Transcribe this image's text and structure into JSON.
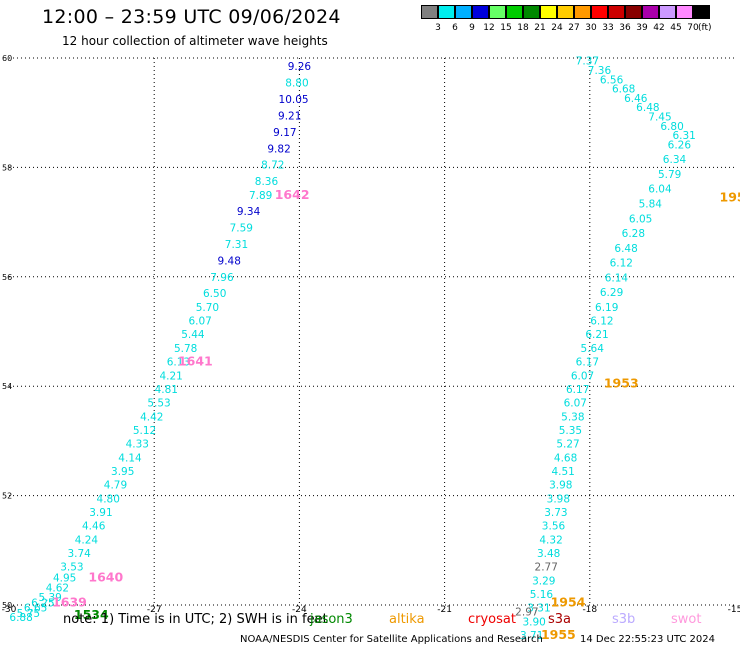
{
  "header": {
    "title": "12:00 – 23:59 UTC 09/06/2024",
    "subtitle": "12 hour collection of altimeter wave heights"
  },
  "colorbar": {
    "unit": "(ft)",
    "bins": [
      {
        "label": "3",
        "color": "#808080"
      },
      {
        "label": "6",
        "color": "#00eeee"
      },
      {
        "label": "9",
        "color": "#00b0ff"
      },
      {
        "label": "12",
        "color": "#0000dd"
      },
      {
        "label": "15",
        "color": "#66ff66"
      },
      {
        "label": "18",
        "color": "#00cc00"
      },
      {
        "label": "21",
        "color": "#008800"
      },
      {
        "label": "24",
        "color": "#ffff00"
      },
      {
        "label": "27",
        "color": "#ffcc00"
      },
      {
        "label": "30",
        "color": "#ff9900"
      },
      {
        "label": "33",
        "color": "#ff0000"
      },
      {
        "label": "36",
        "color": "#cc0000"
      },
      {
        "label": "39",
        "color": "#880000"
      },
      {
        "label": "42",
        "color": "#aa00aa"
      },
      {
        "label": "45",
        "color": "#cc99ff"
      },
      {
        "label": "70",
        "color": "#ff88ff"
      },
      {
        "label": "",
        "color": "#000000"
      }
    ]
  },
  "map": {
    "lon_range": [
      -30,
      -15
    ],
    "lat_range": [
      50,
      60
    ],
    "lon_ticks": [
      "-30",
      "-27",
      "-24",
      "-21",
      "-18",
      "-15"
    ],
    "lat_ticks": [
      "50",
      "52",
      "54",
      "56",
      "58",
      "60"
    ],
    "grid": true
  },
  "colors": {
    "cyan": "#00dddd",
    "blue": "#0000cc",
    "pink": "#ff77cc",
    "orange": "#ee9900",
    "green": "#008800",
    "gray": "#666666"
  },
  "chart_data": {
    "type": "scatter",
    "title": "12:00 – 23:59 UTC 09/06/2024",
    "subtitle": "12 hour collection of altimeter wave heights",
    "xlim": [
      -30,
      -15
    ],
    "ylim": [
      50,
      60
    ],
    "values": [
      {
        "lon": -24.0,
        "lat": 59.85,
        "v": "9.26",
        "c": "blue"
      },
      {
        "lon": -24.05,
        "lat": 59.55,
        "v": "8.80",
        "c": "cyan"
      },
      {
        "lon": -24.12,
        "lat": 59.25,
        "v": "10.05",
        "c": "blue"
      },
      {
        "lon": -24.2,
        "lat": 58.95,
        "v": "9.21",
        "c": "blue"
      },
      {
        "lon": -24.3,
        "lat": 58.65,
        "v": "9.17",
        "c": "blue"
      },
      {
        "lon": -24.42,
        "lat": 58.35,
        "v": "9.82",
        "c": "blue"
      },
      {
        "lon": -24.55,
        "lat": 58.05,
        "v": "8.72",
        "c": "cyan"
      },
      {
        "lon": -24.68,
        "lat": 57.75,
        "v": "8.36",
        "c": "cyan"
      },
      {
        "lon": -24.8,
        "lat": 57.5,
        "v": "7.89",
        "c": "cyan"
      },
      {
        "lon": -25.05,
        "lat": 57.2,
        "v": "9.34",
        "c": "blue"
      },
      {
        "lon": -25.2,
        "lat": 56.9,
        "v": "7.59",
        "c": "cyan"
      },
      {
        "lon": -25.3,
        "lat": 56.6,
        "v": "7.31",
        "c": "cyan"
      },
      {
        "lon": -25.45,
        "lat": 56.3,
        "v": "9.48",
        "c": "blue"
      },
      {
        "lon": -25.6,
        "lat": 56.0,
        "v": "7.96",
        "c": "cyan"
      },
      {
        "lon": -25.75,
        "lat": 55.7,
        "v": "6.50",
        "c": "cyan"
      },
      {
        "lon": -25.9,
        "lat": 55.45,
        "v": "5.70",
        "c": "cyan"
      },
      {
        "lon": -26.05,
        "lat": 55.2,
        "v": "6.07",
        "c": "cyan"
      },
      {
        "lon": -26.2,
        "lat": 54.95,
        "v": "5.44",
        "c": "cyan"
      },
      {
        "lon": -26.35,
        "lat": 54.7,
        "v": "5.78",
        "c": "cyan"
      },
      {
        "lon": -26.5,
        "lat": 54.45,
        "v": "6.13",
        "c": "cyan"
      },
      {
        "lon": -26.65,
        "lat": 54.2,
        "v": "4.21",
        "c": "cyan"
      },
      {
        "lon": -26.75,
        "lat": 53.95,
        "v": "4.81",
        "c": "cyan"
      },
      {
        "lon": -26.9,
        "lat": 53.7,
        "v": "5.53",
        "c": "cyan"
      },
      {
        "lon": -27.05,
        "lat": 53.45,
        "v": "4.42",
        "c": "cyan"
      },
      {
        "lon": -27.2,
        "lat": 53.2,
        "v": "5.12",
        "c": "cyan"
      },
      {
        "lon": -27.35,
        "lat": 52.95,
        "v": "4.33",
        "c": "cyan"
      },
      {
        "lon": -27.5,
        "lat": 52.7,
        "v": "4.14",
        "c": "cyan"
      },
      {
        "lon": -27.65,
        "lat": 52.45,
        "v": "3.95",
        "c": "cyan"
      },
      {
        "lon": -27.8,
        "lat": 52.2,
        "v": "4.79",
        "c": "cyan"
      },
      {
        "lon": -27.95,
        "lat": 51.95,
        "v": "4.80",
        "c": "cyan"
      },
      {
        "lon": -28.1,
        "lat": 51.7,
        "v": "3.91",
        "c": "cyan"
      },
      {
        "lon": -28.25,
        "lat": 51.45,
        "v": "4.46",
        "c": "cyan"
      },
      {
        "lon": -28.4,
        "lat": 51.2,
        "v": "4.24",
        "c": "cyan"
      },
      {
        "lon": -28.55,
        "lat": 50.95,
        "v": "3.74",
        "c": "cyan"
      },
      {
        "lon": -28.7,
        "lat": 50.7,
        "v": "3.53",
        "c": "cyan"
      },
      {
        "lon": -28.85,
        "lat": 50.5,
        "v": "4.95",
        "c": "cyan"
      },
      {
        "lon": -29.0,
        "lat": 50.32,
        "v": "4.62",
        "c": "cyan"
      },
      {
        "lon": -29.15,
        "lat": 50.15,
        "v": "5.39",
        "c": "cyan"
      },
      {
        "lon": -29.3,
        "lat": 50.05,
        "v": "6.25",
        "c": "cyan"
      },
      {
        "lon": -29.45,
        "lat": 49.95,
        "v": "6.65",
        "c": "cyan"
      },
      {
        "lon": -29.6,
        "lat": 49.85,
        "v": "5.75",
        "c": "cyan"
      },
      {
        "lon": -29.75,
        "lat": 49.78,
        "v": "6.88",
        "c": "cyan"
      },
      {
        "lon": -18.05,
        "lat": 59.95,
        "v": "7.37",
        "c": "cyan"
      },
      {
        "lon": -17.8,
        "lat": 59.78,
        "v": "7.36",
        "c": "cyan"
      },
      {
        "lon": -17.55,
        "lat": 59.61,
        "v": "6.56",
        "c": "cyan"
      },
      {
        "lon": -17.3,
        "lat": 59.44,
        "v": "6.68",
        "c": "cyan"
      },
      {
        "lon": -17.05,
        "lat": 59.27,
        "v": "6.46",
        "c": "cyan"
      },
      {
        "lon": -16.8,
        "lat": 59.1,
        "v": "6.48",
        "c": "cyan"
      },
      {
        "lon": -16.55,
        "lat": 58.93,
        "v": "7.45",
        "c": "cyan"
      },
      {
        "lon": -16.3,
        "lat": 58.76,
        "v": "6.80",
        "c": "cyan"
      },
      {
        "lon": -16.05,
        "lat": 58.59,
        "v": "6.31",
        "c": "cyan"
      },
      {
        "lon": -16.15,
        "lat": 58.42,
        "v": "6.26",
        "c": "cyan"
      },
      {
        "lon": -16.25,
        "lat": 58.15,
        "v": "6.34",
        "c": "cyan"
      },
      {
        "lon": -16.35,
        "lat": 57.88,
        "v": "5.79",
        "c": "cyan"
      },
      {
        "lon": -16.55,
        "lat": 57.61,
        "v": "6.04",
        "c": "cyan"
      },
      {
        "lon": -16.75,
        "lat": 57.34,
        "v": "5.84",
        "c": "cyan"
      },
      {
        "lon": -16.95,
        "lat": 57.07,
        "v": "6.05",
        "c": "cyan"
      },
      {
        "lon": -17.1,
        "lat": 56.8,
        "v": "6.28",
        "c": "cyan"
      },
      {
        "lon": -17.25,
        "lat": 56.53,
        "v": "6.48",
        "c": "cyan"
      },
      {
        "lon": -17.35,
        "lat": 56.26,
        "v": "6.12",
        "c": "cyan"
      },
      {
        "lon": -17.45,
        "lat": 55.99,
        "v": "6.14",
        "c": "cyan"
      },
      {
        "lon": -17.55,
        "lat": 55.72,
        "v": "6.29",
        "c": "cyan"
      },
      {
        "lon": -17.65,
        "lat": 55.45,
        "v": "6.19",
        "c": "cyan"
      },
      {
        "lon": -17.75,
        "lat": 55.2,
        "v": "6.12",
        "c": "cyan"
      },
      {
        "lon": -17.85,
        "lat": 54.95,
        "v": "6.21",
        "c": "cyan"
      },
      {
        "lon": -17.95,
        "lat": 54.7,
        "v": "5.64",
        "c": "cyan"
      },
      {
        "lon": -18.05,
        "lat": 54.45,
        "v": "6.17",
        "c": "cyan"
      },
      {
        "lon": -18.15,
        "lat": 54.2,
        "v": "6.07",
        "c": "cyan"
      },
      {
        "lon": -18.25,
        "lat": 53.95,
        "v": "6.17",
        "c": "cyan"
      },
      {
        "lon": -18.3,
        "lat": 53.7,
        "v": "6.07",
        "c": "cyan"
      },
      {
        "lon": -18.35,
        "lat": 53.45,
        "v": "5.38",
        "c": "cyan"
      },
      {
        "lon": -18.4,
        "lat": 53.2,
        "v": "5.35",
        "c": "cyan"
      },
      {
        "lon": -18.45,
        "lat": 52.95,
        "v": "5.27",
        "c": "cyan"
      },
      {
        "lon": -18.5,
        "lat": 52.7,
        "v": "4.68",
        "c": "cyan"
      },
      {
        "lon": -18.55,
        "lat": 52.45,
        "v": "4.51",
        "c": "cyan"
      },
      {
        "lon": -18.6,
        "lat": 52.2,
        "v": "3.98",
        "c": "cyan"
      },
      {
        "lon": -18.65,
        "lat": 51.95,
        "v": "3.98",
        "c": "cyan"
      },
      {
        "lon": -18.7,
        "lat": 51.7,
        "v": "3.73",
        "c": "cyan"
      },
      {
        "lon": -18.75,
        "lat": 51.45,
        "v": "3.56",
        "c": "cyan"
      },
      {
        "lon": -18.8,
        "lat": 51.2,
        "v": "4.32",
        "c": "cyan"
      },
      {
        "lon": -18.85,
        "lat": 50.95,
        "v": "3.48",
        "c": "cyan"
      },
      {
        "lon": -18.9,
        "lat": 50.7,
        "v": "2.77",
        "c": "gray"
      },
      {
        "lon": -18.95,
        "lat": 50.45,
        "v": "3.29",
        "c": "cyan"
      },
      {
        "lon": -19.0,
        "lat": 50.2,
        "v": "5.16",
        "c": "cyan"
      },
      {
        "lon": -19.05,
        "lat": 49.95,
        "v": "3.31",
        "c": "cyan"
      },
      {
        "lon": -19.3,
        "lat": 49.88,
        "v": "2.97",
        "c": "gray"
      },
      {
        "lon": -19.15,
        "lat": 49.7,
        "v": "3.90",
        "c": "cyan"
      },
      {
        "lon": -19.2,
        "lat": 49.45,
        "v": "3.71",
        "c": "cyan"
      }
    ],
    "time_labels": [
      {
        "lon": -24.15,
        "lat": 57.5,
        "v": "1642",
        "c": "pink"
      },
      {
        "lon": -26.15,
        "lat": 54.45,
        "v": "1641",
        "c": "pink"
      },
      {
        "lon": -28.0,
        "lat": 50.5,
        "v": "1640",
        "c": "pink"
      },
      {
        "lon": -28.75,
        "lat": 50.05,
        "v": "1639",
        "c": "pink"
      },
      {
        "lon": -28.3,
        "lat": 49.82,
        "v": "1534",
        "c": "green"
      },
      {
        "lon": -15.05,
        "lat": 57.45,
        "v": "195",
        "c": "orange"
      },
      {
        "lon": -17.35,
        "lat": 54.05,
        "v": "1953",
        "c": "orange"
      },
      {
        "lon": -18.45,
        "lat": 50.05,
        "v": "1954",
        "c": "orange"
      },
      {
        "lon": -18.65,
        "lat": 49.45,
        "v": "1955",
        "c": "orange"
      }
    ]
  },
  "footer": {
    "note": "note:  1) Time is in UTC;  2) SWH is in feet",
    "satellites": [
      {
        "label": "jason3",
        "color": "#008800"
      },
      {
        "label": "altika",
        "color": "#ee9900"
      },
      {
        "label": "cryosat",
        "color": "#ee0000"
      },
      {
        "label": "s3a",
        "color": "#aa0000"
      },
      {
        "label": "s3b",
        "color": "#bbaaff"
      },
      {
        "label": "swot",
        "color": "#ff99dd"
      }
    ],
    "credit": "NOAA/NESDIS Center for Satellite Applications and Research",
    "timestamp": "14 Dec 22:55:23 UTC 2024"
  }
}
